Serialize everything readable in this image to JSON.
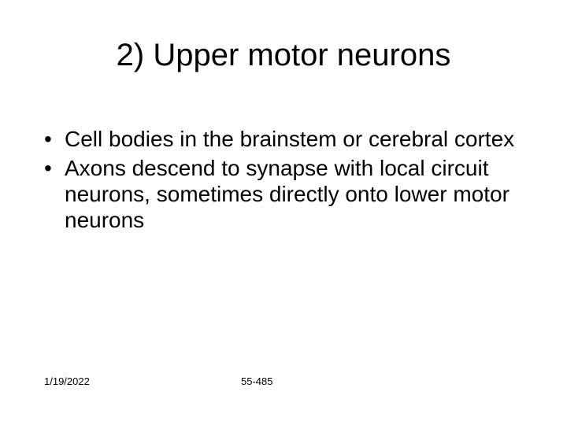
{
  "title": "2) Upper motor neurons",
  "bullets": [
    "Cell bodies in the brainstem or cerebral cortex",
    "Axons descend to synapse with local circuit neurons, sometimes directly onto lower motor neurons"
  ],
  "footer": {
    "date": "1/19/2022",
    "pagenum": "55-485"
  },
  "style": {
    "background_color": "#ffffff",
    "text_color": "#000000",
    "title_fontsize": 40,
    "body_fontsize": 28,
    "footer_fontsize": 13,
    "font_family": "Arial"
  }
}
